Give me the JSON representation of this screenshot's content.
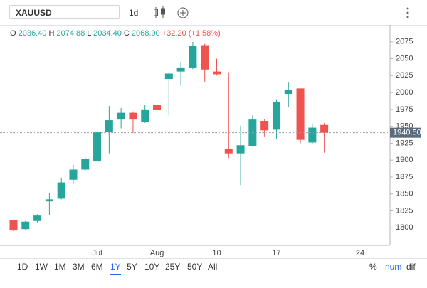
{
  "toolbar": {
    "symbol": "XAUUSD",
    "interval": "1d"
  },
  "header": {
    "o_label": "O",
    "open": "2036.40",
    "h_label": "H",
    "high": "2074.88",
    "l_label": "L",
    "low": "2034.40",
    "c_label": "C",
    "close": "2068.90",
    "change": "+32.20 (+1.58%)"
  },
  "ranges": [
    "1D",
    "1W",
    "1M",
    "3M",
    "6M",
    "1Y",
    "5Y",
    "10Y",
    "25Y",
    "50Y",
    "All"
  ],
  "selected_range": "1Y",
  "scale_modes": [
    "%",
    "num",
    "dif"
  ],
  "selected_scale_mode": "num",
  "chart_data": {
    "type": "candlestick",
    "categories": [
      null,
      null,
      null,
      null,
      null,
      null,
      null,
      "Jul",
      null,
      null,
      null,
      null,
      "Aug",
      null,
      null,
      null,
      null,
      "10",
      null,
      null,
      null,
      null,
      "17",
      null,
      null,
      null,
      null,
      null,
      null,
      "24",
      null,
      null
    ],
    "open": [
      1811,
      1798,
      1810,
      1839,
      1843,
      1871,
      1886,
      1898,
      1942,
      1960,
      1970,
      1957,
      1982,
      2020,
      2031,
      2036.4,
      2070,
      2031,
      1917,
      1910,
      1921,
      1958,
      1945,
      1998,
      2006,
      1926,
      1952,
      null,
      null,
      null,
      null,
      null
    ],
    "high": [
      1812,
      1810,
      1820,
      1851,
      1874,
      1893,
      1904,
      1945,
      1980,
      1977,
      1972,
      1982,
      1984,
      2030,
      2045,
      2074.88,
      2072,
      2050,
      2030,
      1951,
      1966,
      1961,
      1990,
      2015,
      2006,
      1954,
      1955,
      null,
      null,
      null,
      null,
      null
    ],
    "low": [
      1795,
      1797,
      1808,
      1819,
      1842,
      1865,
      1884,
      1897,
      1910,
      1947,
      1940,
      1955,
      1965,
      1966,
      2010,
      2034.4,
      2016,
      2025,
      1903,
      1863,
      1920,
      1935,
      1931,
      1978,
      1925,
      1924,
      1911,
      null,
      null,
      null,
      null,
      null
    ],
    "close": [
      1796,
      1809,
      1818,
      1842,
      1867,
      1886,
      1902,
      1942,
      1959,
      1970,
      1960,
      1975,
      1974,
      2028,
      2037,
      2068.9,
      2034,
      2027,
      1910,
      1922,
      1960,
      1944,
      1986,
      2004,
      1930,
      1948,
      1940.5,
      null,
      null,
      null,
      null,
      null
    ],
    "up_color": "#26a69a",
    "down_color": "#ef5350",
    "ylim": [
      1774,
      2100
    ],
    "yticks": [
      1800,
      1825,
      1850,
      1875,
      1900,
      1925,
      1950,
      1975,
      2000,
      2025,
      2050,
      2075
    ],
    "last_price": {
      "value": 1940.5,
      "label": "1940.50"
    },
    "grid": false
  }
}
